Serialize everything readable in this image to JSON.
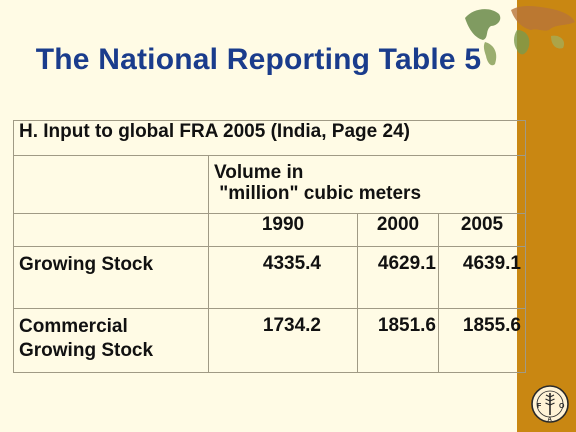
{
  "title": "The National Reporting Table 5",
  "table": {
    "header": "H. Input to global FRA 2005 (India, Page 24)",
    "volume_label": "Volume in\n \"million\" cubic meters",
    "years": [
      "1990",
      "2000",
      "2005"
    ],
    "rows": [
      {
        "label": "Growing Stock",
        "values": [
          "4335.4",
          "4629.1",
          "4639.1"
        ]
      },
      {
        "label": "Commercial Growing Stock",
        "values": [
          "1734.2",
          "1851.6",
          "1855.6"
        ]
      }
    ]
  },
  "colors": {
    "title": "#1a3c8c",
    "background": "#fffbe5",
    "sidebar": "#c98712"
  },
  "icons": [
    "world-map-decoration",
    "fao-logo-icon"
  ]
}
